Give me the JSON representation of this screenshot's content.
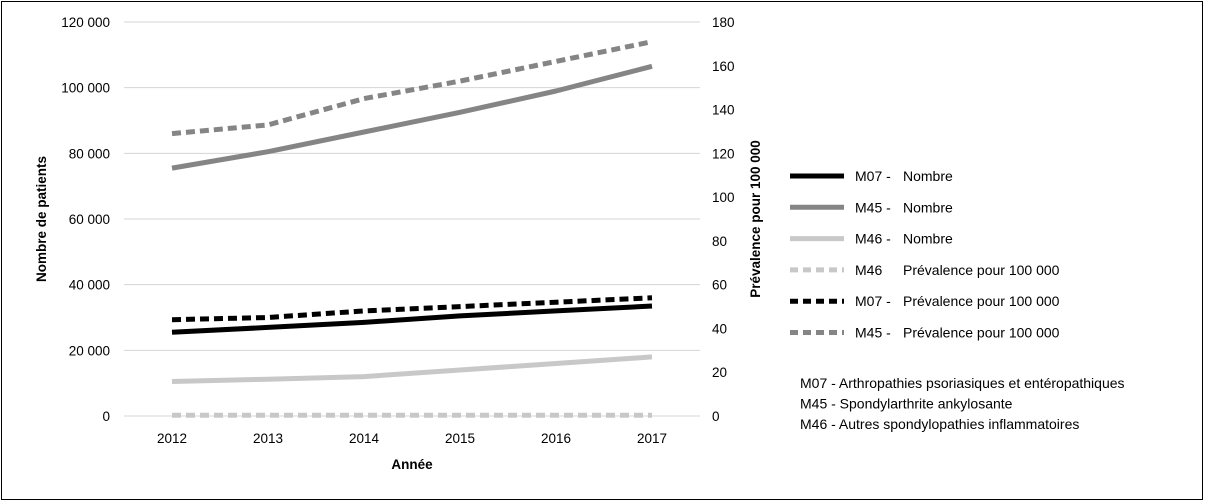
{
  "chart_data": {
    "type": "line",
    "x": [
      "2012",
      "2013",
      "2014",
      "2015",
      "2016",
      "2017"
    ],
    "xlabel": "Année",
    "ylabel_left": "Nombre de patients",
    "ylabel_right": "Prévalence pour 100 000",
    "ylim_left": [
      0,
      120000
    ],
    "ylim_right": [
      0,
      180
    ],
    "yticks_left": [
      "0",
      "20 000",
      "40 000",
      "60 000",
      "80 000",
      "100 000",
      "120 000"
    ],
    "yticks_right": [
      "0",
      "20",
      "40",
      "60",
      "80",
      "100",
      "120",
      "140",
      "160",
      "180"
    ],
    "grid": true,
    "legend_position": "right",
    "series": [
      {
        "code": "M07 -",
        "name": "Nombre",
        "axis": "left",
        "style": "solid",
        "color": "#000000",
        "values": [
          25500,
          27000,
          28500,
          30500,
          32000,
          33500
        ]
      },
      {
        "code": "M45 -",
        "name": "Nombre",
        "axis": "left",
        "style": "solid",
        "color": "#858585",
        "values": [
          75500,
          80500,
          86500,
          92500,
          99000,
          106500
        ]
      },
      {
        "code": "M46 -",
        "name": "Nombre",
        "axis": "left",
        "style": "solid",
        "color": "#c8c8c8",
        "values": [
          10500,
          11200,
          12000,
          14000,
          16000,
          18000
        ]
      },
      {
        "code": "M46",
        "name": "Prévalence pour 100 000",
        "axis": "right",
        "style": "dashed",
        "color": "#c8c8c8",
        "values": [
          0.3,
          0.3,
          0.3,
          0.3,
          0.3,
          0.3
        ]
      },
      {
        "code": "M07 -",
        "name": "Prévalence pour 100 000",
        "axis": "right",
        "style": "dashed",
        "color": "#000000",
        "values": [
          44,
          45,
          48,
          50,
          52,
          54
        ]
      },
      {
        "code": "M45 -",
        "name": "Prévalence pour 100 000",
        "axis": "right",
        "style": "dashed",
        "color": "#858585",
        "values": [
          129,
          133,
          145,
          153,
          162,
          171
        ]
      }
    ],
    "notes": [
      "M07 - Arthropathies psoriasiques et entéropathiques",
      "M45 - Spondylarthrite ankylosante",
      "M46 - Autres spondylopathies inflammatoires"
    ]
  }
}
